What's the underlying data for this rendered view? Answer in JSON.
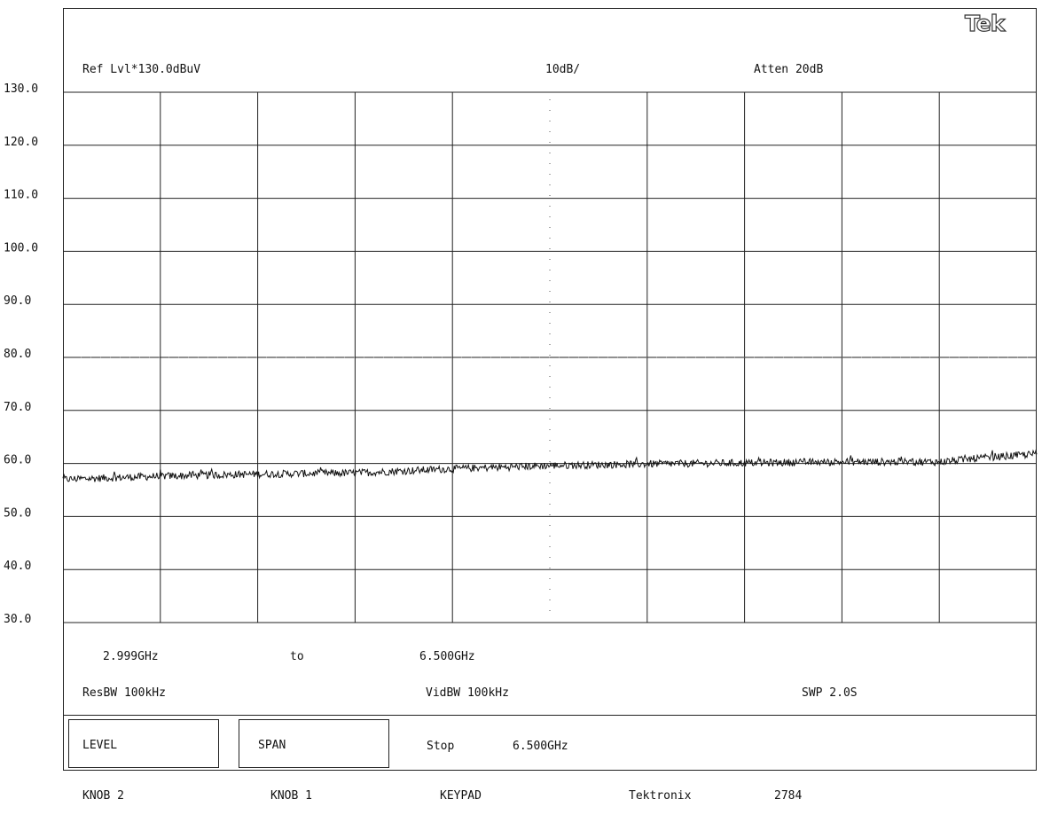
{
  "logo": "Tek",
  "header": {
    "ref_level": "Ref Lvl*130.0dBuV",
    "scale": "10dB/",
    "atten": "Atten 20dB"
  },
  "frequency": {
    "start": "2.999GHz",
    "to": "to",
    "stop": "6.500GHz"
  },
  "settings": {
    "res_bw": "ResBW 100kHz",
    "vid_bw": "VidBW 100kHz",
    "sweep": "SWP 2.0S"
  },
  "softkeys": {
    "level": "LEVEL",
    "span": "SPAN",
    "stop_label": "Stop",
    "stop_value": "6.500GHz"
  },
  "footer": {
    "knob2": "KNOB 2",
    "knob1": "KNOB 1",
    "keypad": "KEYPAD",
    "brand": "Tektronix",
    "model": "2784"
  },
  "chart_data": {
    "type": "line",
    "title": "",
    "xlabel": "",
    "ylabel": "",
    "xlim": [
      2.999,
      6.5
    ],
    "x_unit": "GHz",
    "ylim": [
      30.0,
      130.0
    ],
    "y_unit": "dBuV",
    "y_ticks": [
      "130.0",
      "120.0",
      "110.0",
      "100.0",
      "90.0",
      "80.0",
      "70.0",
      "60.0",
      "50.0",
      "40.0",
      "30.0"
    ],
    "grid": true,
    "limit_line": 80.0,
    "series": [
      {
        "x": [
          2.999,
          3.35,
          3.7,
          4.05,
          4.4,
          4.75,
          5.1,
          5.45,
          5.8,
          6.15,
          6.3,
          6.5
        ],
        "values": [
          57.0,
          57.6,
          58.0,
          58.2,
          59.0,
          59.6,
          59.9,
          60.1,
          60.3,
          60.3,
          61.0,
          61.8
        ]
      }
    ]
  }
}
